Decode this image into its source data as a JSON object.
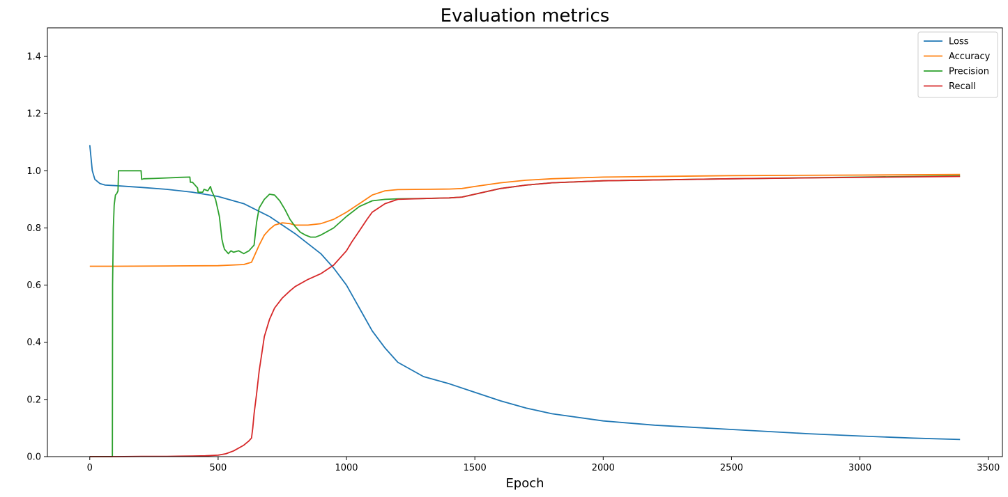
{
  "chart_data": {
    "type": "line",
    "title": "Evaluation metrics",
    "xlabel": "Epoch",
    "ylabel": "",
    "xlim": [
      -165,
      3555
    ],
    "ylim": [
      0,
      1.5
    ],
    "xticks": [
      0,
      500,
      1000,
      1500,
      2000,
      2500,
      3000,
      3500
    ],
    "yticks": [
      0.0,
      0.2,
      0.4,
      0.6,
      0.8,
      1.0,
      1.2,
      1.4
    ],
    "ytick_labels": [
      "0.0",
      "0.2",
      "0.4",
      "0.6",
      "0.8",
      "1.0",
      "1.2",
      "1.4"
    ],
    "grid": false,
    "legend_position": "top-right",
    "series": [
      {
        "name": "Loss",
        "color": "#1f77b4",
        "x": [
          0,
          10,
          20,
          40,
          60,
          100,
          200,
          300,
          400,
          500,
          600,
          700,
          800,
          900,
          950,
          1000,
          1050,
          1100,
          1150,
          1200,
          1300,
          1400,
          1500,
          1600,
          1700,
          1800,
          2000,
          2200,
          2500,
          2800,
          3000,
          3200,
          3390
        ],
        "y": [
          1.09,
          1.0,
          0.97,
          0.955,
          0.95,
          0.948,
          0.942,
          0.935,
          0.925,
          0.91,
          0.885,
          0.84,
          0.78,
          0.71,
          0.66,
          0.6,
          0.52,
          0.44,
          0.38,
          0.33,
          0.28,
          0.255,
          0.225,
          0.195,
          0.17,
          0.15,
          0.125,
          0.11,
          0.095,
          0.08,
          0.072,
          0.065,
          0.06
        ]
      },
      {
        "name": "Accuracy",
        "color": "#ff7f0e",
        "x": [
          0,
          100,
          300,
          500,
          600,
          630,
          640,
          660,
          680,
          700,
          720,
          750,
          780,
          800,
          850,
          900,
          950,
          1000,
          1050,
          1100,
          1150,
          1200,
          1300,
          1400,
          1450,
          1500,
          1600,
          1700,
          1800,
          2000,
          2500,
          3000,
          3390
        ],
        "y": [
          0.666,
          0.666,
          0.667,
          0.668,
          0.672,
          0.68,
          0.7,
          0.74,
          0.775,
          0.795,
          0.81,
          0.818,
          0.815,
          0.81,
          0.81,
          0.815,
          0.83,
          0.855,
          0.885,
          0.915,
          0.93,
          0.934,
          0.935,
          0.936,
          0.938,
          0.945,
          0.958,
          0.967,
          0.972,
          0.978,
          0.983,
          0.985,
          0.987
        ]
      },
      {
        "name": "Precision",
        "color": "#2ca02c",
        "x": [
          0,
          88,
          89,
          92,
          95,
          100,
          105,
          110,
          112,
          115,
          200,
          202,
          210,
          250,
          300,
          350,
          390,
          392,
          400,
          420,
          422,
          440,
          445,
          460,
          470,
          475,
          480,
          490,
          500,
          505,
          510,
          515,
          520,
          525,
          530,
          540,
          550,
          560,
          580,
          600,
          620,
          630,
          640,
          650,
          660,
          680,
          700,
          720,
          740,
          760,
          780,
          800,
          820,
          840,
          860,
          880,
          900,
          950,
          1000,
          1050,
          1100,
          1150,
          1200,
          1300,
          1400,
          1450,
          1500,
          1600,
          1700,
          1800,
          2000,
          2500,
          3000,
          3390
        ],
        "y": [
          0,
          0,
          0.6,
          0.8,
          0.88,
          0.915,
          0.92,
          0.93,
          1.0,
          1.0,
          1.0,
          0.97,
          0.972,
          0.973,
          0.975,
          0.977,
          0.978,
          0.96,
          0.96,
          0.94,
          0.925,
          0.925,
          0.935,
          0.93,
          0.945,
          0.93,
          0.92,
          0.9,
          0.86,
          0.84,
          0.8,
          0.76,
          0.74,
          0.725,
          0.72,
          0.71,
          0.72,
          0.715,
          0.72,
          0.71,
          0.72,
          0.73,
          0.74,
          0.82,
          0.87,
          0.9,
          0.918,
          0.915,
          0.895,
          0.865,
          0.83,
          0.805,
          0.785,
          0.775,
          0.768,
          0.768,
          0.775,
          0.8,
          0.84,
          0.875,
          0.895,
          0.9,
          0.902,
          0.903,
          0.905,
          0.908,
          0.918,
          0.938,
          0.95,
          0.958,
          0.965,
          0.972,
          0.978,
          0.982
        ]
      },
      {
        "name": "Recall",
        "color": "#d62728",
        "x": [
          0,
          100,
          200,
          300,
          400,
          450,
          500,
          530,
          560,
          600,
          620,
          630,
          635,
          640,
          650,
          660,
          670,
          680,
          700,
          720,
          750,
          780,
          800,
          850,
          900,
          950,
          1000,
          1020,
          1050,
          1080,
          1100,
          1150,
          1200,
          1300,
          1400,
          1450,
          1500,
          1600,
          1700,
          1800,
          2000,
          2500,
          3000,
          3390
        ],
        "y": [
          0,
          0,
          0.001,
          0.001,
          0.002,
          0.003,
          0.005,
          0.01,
          0.02,
          0.04,
          0.055,
          0.065,
          0.1,
          0.15,
          0.22,
          0.3,
          0.36,
          0.42,
          0.48,
          0.52,
          0.555,
          0.58,
          0.595,
          0.62,
          0.64,
          0.67,
          0.72,
          0.75,
          0.79,
          0.83,
          0.855,
          0.885,
          0.9,
          0.903,
          0.905,
          0.908,
          0.918,
          0.938,
          0.95,
          0.958,
          0.965,
          0.972,
          0.977,
          0.98
        ]
      }
    ]
  }
}
